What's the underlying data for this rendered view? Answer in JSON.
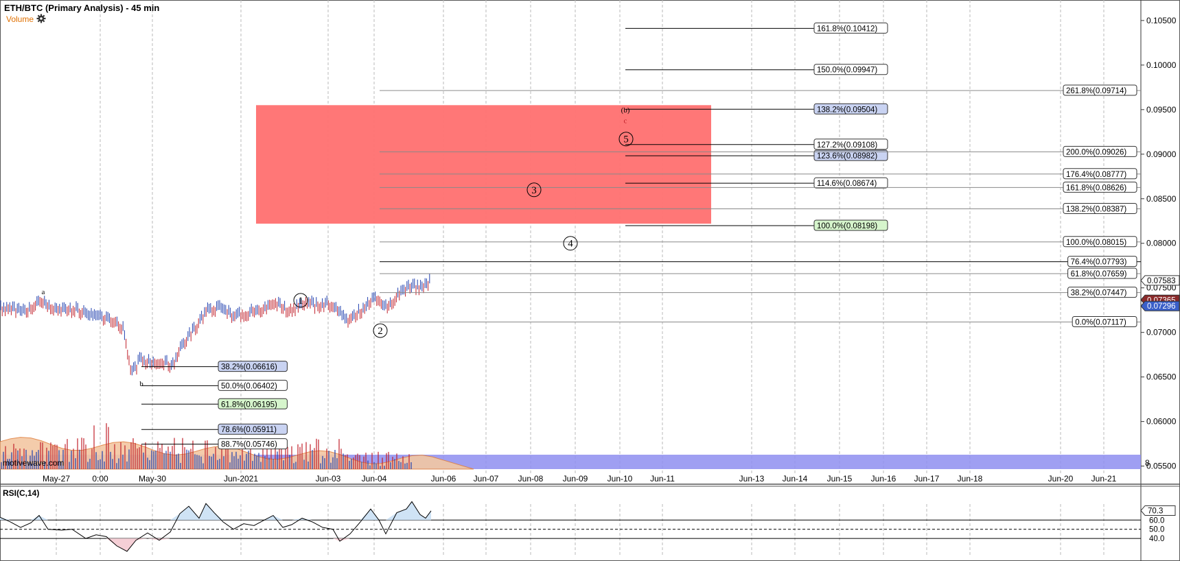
{
  "header": {
    "title": "ETH/BTC (Primary Analysis) - 45 min",
    "volume_label": "Volume",
    "watermark": "motivewave.com",
    "rsi_label": "RSI(C,14)"
  },
  "colors": {
    "up": "#1f3fae",
    "down": "#c0202a",
    "zone": "#ff7070",
    "vol_band": "#8e8ef0",
    "grid": "#b8b8b8",
    "vol_area": "#f3c7a3",
    "rsi_fill": "#cfe3f5"
  },
  "chart_data": {
    "type": "line",
    "title": "ETH/BTC (Primary Analysis) - 45 min",
    "x_tick_labels": [
      "May-27",
      "0:00",
      "May-30",
      "Jun-2021",
      "Jun-03",
      "Jun-04",
      "Jun-06",
      "Jun-07",
      "Jun-08",
      "Jun-09",
      "Jun-10",
      "Jun-11",
      "Jun-13",
      "Jun-14",
      "Jun-15",
      "Jun-16",
      "Jun-17",
      "Jun-18",
      "Jun-20",
      "Jun-21"
    ],
    "y_tick_labels": [
      "0.10500",
      "0.10000",
      "0.09500",
      "0.09000",
      "0.08500",
      "0.08000",
      "0.07500",
      "0.07000",
      "0.06500",
      "0.06000",
      "0.05500"
    ],
    "ylim": [
      0.0542,
      0.1073
    ],
    "price_path": [
      [
        0,
        0.0728
      ],
      [
        20,
        0.0726
      ],
      [
        40,
        0.0722
      ],
      [
        57,
        0.0736
      ],
      [
        70,
        0.0728
      ],
      [
        90,
        0.0724
      ],
      [
        110,
        0.0726
      ],
      [
        130,
        0.0718
      ],
      [
        150,
        0.0716
      ],
      [
        170,
        0.0712
      ],
      [
        180,
        0.0702
      ],
      [
        192,
        0.0654
      ],
      [
        205,
        0.067
      ],
      [
        220,
        0.0665
      ],
      [
        235,
        0.0668
      ],
      [
        250,
        0.0662
      ],
      [
        265,
        0.0685
      ],
      [
        280,
        0.07
      ],
      [
        300,
        0.0724
      ],
      [
        320,
        0.0728
      ],
      [
        340,
        0.0718
      ],
      [
        360,
        0.0722
      ],
      [
        380,
        0.0726
      ],
      [
        400,
        0.0735
      ],
      [
        415,
        0.0726
      ],
      [
        430,
        0.0728
      ],
      [
        445,
        0.0735
      ],
      [
        460,
        0.073
      ],
      [
        480,
        0.0732
      ],
      [
        495,
        0.0722
      ],
      [
        505,
        0.0712
      ],
      [
        520,
        0.0722
      ],
      [
        535,
        0.073
      ],
      [
        550,
        0.074
      ],
      [
        560,
        0.0726
      ],
      [
        575,
        0.0738
      ],
      [
        590,
        0.0748
      ],
      [
        605,
        0.0752
      ],
      [
        615,
        0.075
      ],
      [
        628,
        0.0759
      ]
    ],
    "fib_left": [
      {
        "label": "38.2%(0.06616)",
        "value": 0.06616,
        "style": "blue"
      },
      {
        "label": "50.0%(0.06402)",
        "value": 0.06402,
        "style": "plain"
      },
      {
        "label": "61.8%(0.06195)",
        "value": 0.06195,
        "style": "green"
      },
      {
        "label": "78.6%(0.05911)",
        "value": 0.05911,
        "style": "blue"
      },
      {
        "label": "88.7%(0.05746)",
        "value": 0.05746,
        "style": "plain"
      }
    ],
    "fib_mid": [
      {
        "label": "161.8%(0.10412)",
        "value": 0.10412,
        "style": "plain"
      },
      {
        "label": "150.0%(0.09947)",
        "value": 0.09947,
        "style": "plain"
      },
      {
        "label": "138.2%(0.09504)",
        "value": 0.09504,
        "style": "blue"
      },
      {
        "label": "127.2%(0.09108)",
        "value": 0.09108,
        "style": "plain"
      },
      {
        "label": "123.6%(0.08982)",
        "value": 0.08982,
        "style": "blue"
      },
      {
        "label": "114.6%(0.08674)",
        "value": 0.08674,
        "style": "plain"
      },
      {
        "label": "100.0%(0.08198)",
        "value": 0.08198,
        "style": "green"
      }
    ],
    "fib_right": [
      {
        "label": "261.8%(0.09714)",
        "value": 0.09714
      },
      {
        "label": "200.0%(0.09026)",
        "value": 0.09026
      },
      {
        "label": "176.4%(0.08777)",
        "value": 0.08777
      },
      {
        "label": "161.8%(0.08626)",
        "value": 0.08626
      },
      {
        "label": "138.2%(0.08387)",
        "value": 0.08387
      },
      {
        "label": "100.0%(0.08015)",
        "value": 0.08015
      },
      {
        "label": "76.4%(0.07793)",
        "value": 0.07793
      },
      {
        "label": "61.8%(0.07659)",
        "value": 0.07659
      },
      {
        "label": "38.2%(0.07447)",
        "value": 0.07447
      },
      {
        "label": "0.0%(0.07117)",
        "value": 0.07117
      }
    ],
    "target_zone": {
      "low": 0.0822,
      "high": 0.0955
    },
    "wave_labels": [
      {
        "label": "1",
        "value": 0.0736,
        "circled": true
      },
      {
        "label": "2",
        "value": 0.0702,
        "circled": true
      },
      {
        "label": "3",
        "value": 0.086,
        "circled": true
      },
      {
        "label": "4",
        "value": 0.08,
        "circled": true
      },
      {
        "label": "5",
        "value": 0.0917,
        "circled": true
      },
      {
        "label": "(b)",
        "value": 0.095,
        "circled": false
      },
      {
        "label": "c",
        "value": 0.0938,
        "circled": false
      },
      {
        "label": "a",
        "value": 0.0746,
        "circled": false
      },
      {
        "label": "b",
        "value": 0.0643,
        "circled": false
      }
    ],
    "price_tags": [
      {
        "label": "0.07583",
        "value": 0.07583,
        "style": "white"
      },
      {
        "label": "0.07365",
        "value": 0.07365,
        "style": "red"
      },
      {
        "label": "0.07296",
        "value": 0.07296,
        "style": "blue"
      }
    ],
    "volume_axis_label": "8",
    "rsi": {
      "name": "RSI(C,14)",
      "current_label": "70.3",
      "levels": [
        "60.0",
        "50.0",
        "40.0"
      ],
      "level_values": [
        60,
        50,
        40
      ],
      "current": 70.3,
      "ylim": [
        20,
        90
      ],
      "path": [
        [
          0,
          63
        ],
        [
          15,
          58
        ],
        [
          30,
          52
        ],
        [
          45,
          57
        ],
        [
          57,
          65
        ],
        [
          70,
          50
        ],
        [
          90,
          49
        ],
        [
          105,
          50
        ],
        [
          125,
          40
        ],
        [
          140,
          44
        ],
        [
          155,
          42
        ],
        [
          170,
          32
        ],
        [
          185,
          26
        ],
        [
          198,
          38
        ],
        [
          215,
          46
        ],
        [
          232,
          38
        ],
        [
          248,
          47
        ],
        [
          262,
          67
        ],
        [
          275,
          75
        ],
        [
          290,
          62
        ],
        [
          300,
          78
        ],
        [
          312,
          68
        ],
        [
          325,
          58
        ],
        [
          340,
          50
        ],
        [
          355,
          56
        ],
        [
          370,
          54
        ],
        [
          385,
          60
        ],
        [
          398,
          65
        ],
        [
          412,
          52
        ],
        [
          425,
          55
        ],
        [
          440,
          62
        ],
        [
          455,
          58
        ],
        [
          470,
          52
        ],
        [
          485,
          50
        ],
        [
          495,
          37
        ],
        [
          510,
          45
        ],
        [
          525,
          58
        ],
        [
          540,
          72
        ],
        [
          552,
          60
        ],
        [
          562,
          45
        ],
        [
          578,
          68
        ],
        [
          592,
          72
        ],
        [
          600,
          80
        ],
        [
          612,
          66
        ],
        [
          620,
          62
        ],
        [
          628,
          70
        ]
      ]
    }
  }
}
